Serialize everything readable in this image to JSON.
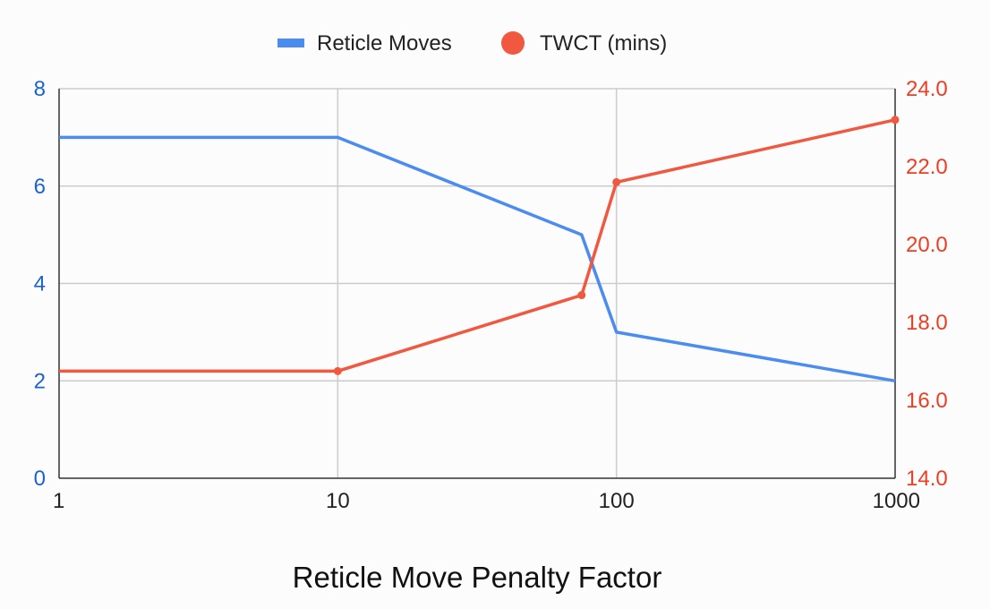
{
  "chart_data": {
    "type": "line",
    "title": "",
    "xlabel": "Reticle Move Penalty Factor",
    "x_scale": "log",
    "x_ticks": [
      "1",
      "10",
      "100",
      "1000"
    ],
    "xlim": [
      1,
      1000
    ],
    "y_left": {
      "ticks": [
        "0",
        "2",
        "4",
        "6",
        "8"
      ],
      "ylim": [
        0,
        8
      ],
      "color": "#1a63d6"
    },
    "y_right": {
      "ticks": [
        "14.0",
        "16.0",
        "18.0",
        "20.0",
        "22.0",
        "24.0"
      ],
      "ylim": [
        14,
        24
      ],
      "color": "#ee3d22"
    },
    "grid": true,
    "legend_position": "top",
    "series": [
      {
        "name": "Reticle Moves",
        "axis": "left",
        "color": "#4a8cf0",
        "markers": false,
        "x": [
          1,
          10,
          75,
          100,
          1000
        ],
        "y": [
          7,
          7,
          5,
          3,
          2
        ]
      },
      {
        "name": "TWCT (mins)",
        "axis": "right",
        "color": "#f0583f",
        "markers": true,
        "x": [
          1,
          10,
          75,
          100,
          1000
        ],
        "y": [
          16.75,
          16.75,
          18.7,
          21.6,
          23.2
        ]
      }
    ]
  }
}
